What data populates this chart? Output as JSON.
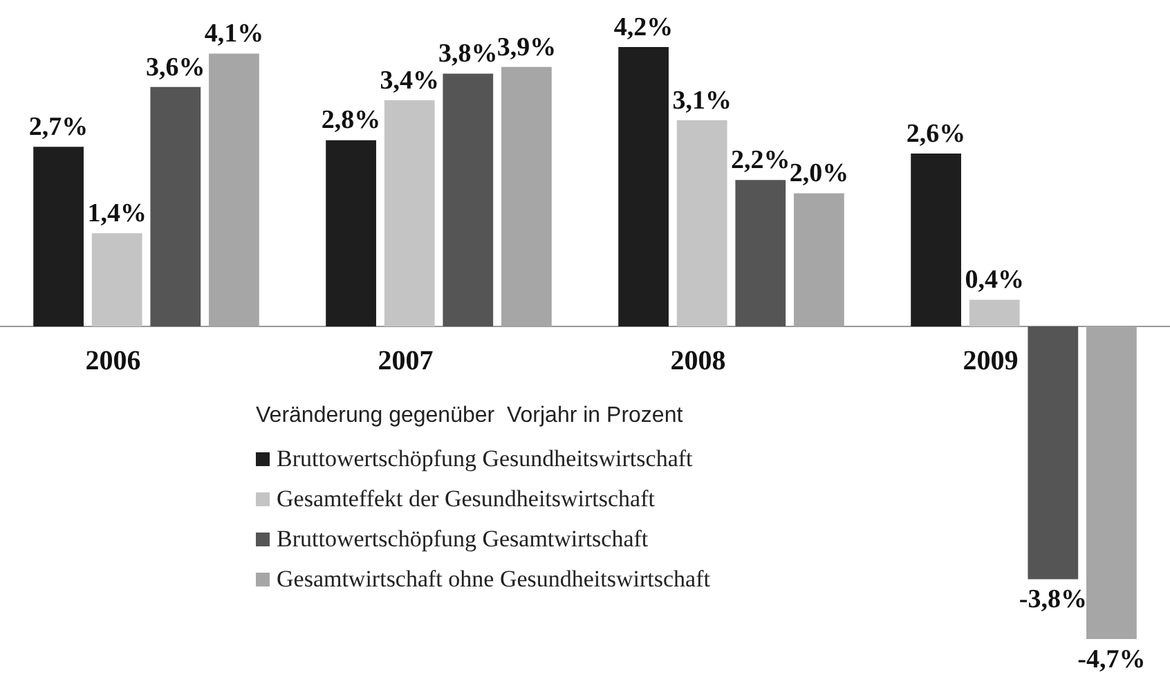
{
  "chart_data": {
    "type": "bar",
    "categories": [
      "2006",
      "2007",
      "2008",
      "2009"
    ],
    "legend_title": "Veränderung gegenüber  Vorjahr in Prozent",
    "legend": "bottom left",
    "grid": false,
    "series": [
      {
        "name": "Bruttowertschöpfung Gesundheitswirtschaft",
        "color": "#1e1e1e",
        "values": [
          2.7,
          2.8,
          4.2,
          2.6
        ],
        "value_labels": [
          "2,7%",
          "2,8%",
          "4,2%",
          "2,6%"
        ]
      },
      {
        "name": "Gesamteffekt der Gesundheitswirtschaft",
        "color": "#c4c4c4",
        "values": [
          1.4,
          3.4,
          3.1,
          0.4
        ],
        "value_labels": [
          "1,4%",
          "3,4%",
          "3,1%",
          "0,4%"
        ]
      },
      {
        "name": "Bruttowertschöpfung Gesamtwirtschaft",
        "color": "#555555",
        "values": [
          3.6,
          3.8,
          2.2,
          -3.8
        ],
        "value_labels": [
          "3,6%",
          "3,8%",
          "2,2%",
          "-3,8%"
        ]
      },
      {
        "name": "Gesamtwirtschaft ohne Gesundheitswirtschaft",
        "color": "#a6a6a6",
        "values": [
          4.1,
          3.9,
          2.0,
          -4.7
        ],
        "value_labels": [
          "4,1%",
          "3,9%",
          "2,0%",
          "-4,7%"
        ]
      }
    ]
  }
}
